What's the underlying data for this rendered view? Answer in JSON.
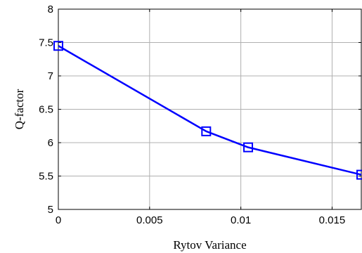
{
  "chart_data": {
    "type": "line",
    "title": "",
    "xlabel": "Rytov Variance",
    "ylabel": "Q-factor",
    "xlim": [
      0,
      0.0166
    ],
    "ylim": [
      5,
      8
    ],
    "xticks": [
      0,
      0.005,
      0.01,
      0.015
    ],
    "xtick_labels": [
      "0",
      "0.005",
      "0.01",
      "0.015"
    ],
    "yticks": [
      5,
      5.5,
      6,
      6.5,
      7,
      7.5,
      8
    ],
    "ytick_labels": [
      "5",
      "5.5",
      "6",
      "6.5",
      "7",
      "7.5",
      "8"
    ],
    "grid": true,
    "legend": "none",
    "series": [
      {
        "x": [
          0,
          0.0081,
          0.0104,
          0.0166
        ],
        "y": [
          7.45,
          6.17,
          5.93,
          5.52
        ],
        "color": "#0000ff",
        "marker": "square"
      }
    ]
  }
}
